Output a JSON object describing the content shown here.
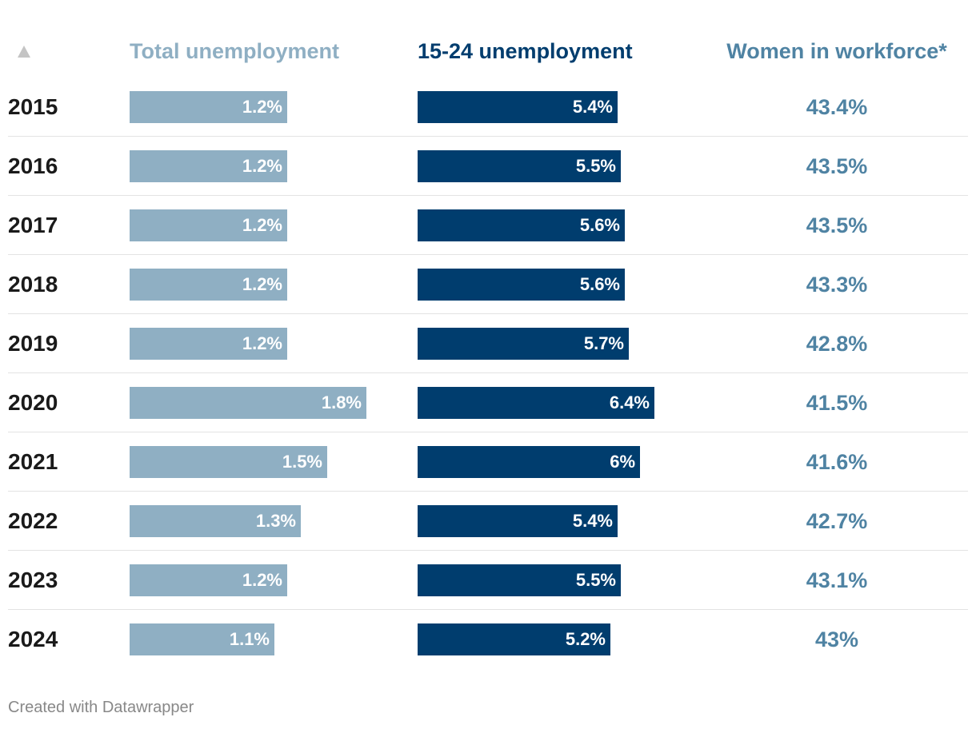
{
  "chart_data": {
    "type": "table",
    "header": {
      "sort_icon": "sort-up-icon",
      "total_label": "Total unemployment",
      "youth_label": "15-24 unemployment",
      "women_label": "Women in workforce*"
    },
    "categories": [
      "2015",
      "2016",
      "2017",
      "2018",
      "2019",
      "2020",
      "2021",
      "2022",
      "2023",
      "2024"
    ],
    "series": [
      {
        "name": "Total unemployment",
        "values": [
          1.2,
          1.2,
          1.2,
          1.2,
          1.2,
          1.8,
          1.5,
          1.3,
          1.2,
          1.1
        ],
        "labels": [
          "1.2%",
          "1.2%",
          "1.2%",
          "1.2%",
          "1.2%",
          "1.8%",
          "1.5%",
          "1.3%",
          "1.2%",
          "1.1%"
        ],
        "color": "#8fafc3",
        "xlim": [
          0,
          1.8
        ]
      },
      {
        "name": "15-24 unemployment",
        "values": [
          5.4,
          5.5,
          5.6,
          5.6,
          5.7,
          6.4,
          6.0,
          5.4,
          5.5,
          5.2
        ],
        "labels": [
          "5.4%",
          "5.5%",
          "5.6%",
          "5.6%",
          "5.7%",
          "6.4%",
          "6%",
          "5.4%",
          "5.5%",
          "5.2%"
        ],
        "color": "#003d6e",
        "xlim": [
          0,
          6.4
        ]
      },
      {
        "name": "Women in workforce*",
        "values": [
          43.4,
          43.5,
          43.5,
          43.3,
          42.8,
          41.5,
          41.6,
          42.7,
          43.1,
          43.0
        ],
        "labels": [
          "43.4%",
          "43.5%",
          "43.5%",
          "43.3%",
          "42.8%",
          "41.5%",
          "41.6%",
          "42.7%",
          "43.1%",
          "43%"
        ],
        "color": "#4f83a3"
      }
    ]
  },
  "footer": {
    "credit": "Created with Datawrapper"
  }
}
